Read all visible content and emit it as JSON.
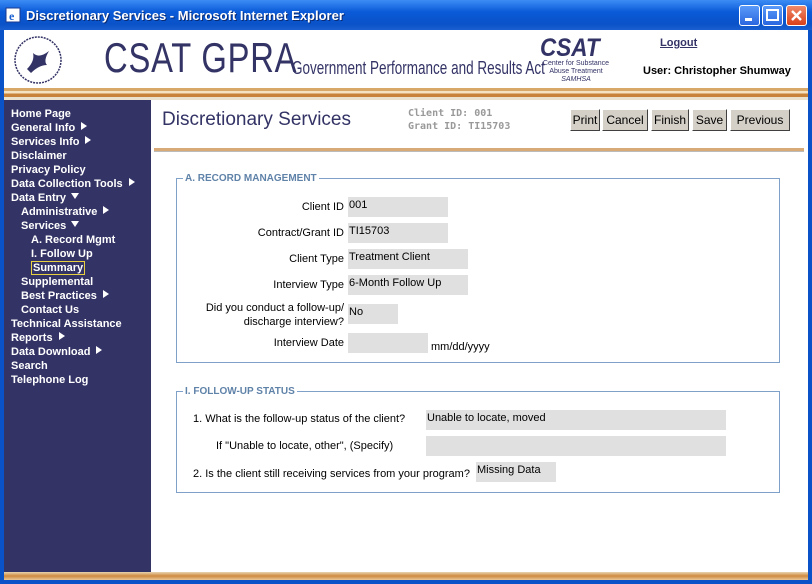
{
  "window": {
    "title": "Discretionary Services - Microsoft Internet Explorer"
  },
  "header": {
    "title": "CSAT GPRA",
    "subtitle": "Government Performance and Results Act",
    "logo": {
      "name": "CSAT",
      "lines": [
        "Center for Substance",
        "Abuse Treatment",
        "SAMHSA"
      ]
    },
    "logout": "Logout",
    "user": "User: Christopher Shumway"
  },
  "nav": {
    "items": [
      {
        "label": "Home Page"
      },
      {
        "label": "General Info",
        "submenu": "collapsed"
      },
      {
        "label": "Services Info",
        "submenu": "collapsed"
      },
      {
        "label": "Disclaimer"
      },
      {
        "label": "Privacy Policy"
      },
      {
        "label": "Data Collection Tools",
        "submenu": "collapsed"
      },
      {
        "label": "Data Entry",
        "children": [
          {
            "label": "Administrative",
            "submenu": "collapsed"
          },
          {
            "label": "Services",
            "children": [
              {
                "label": "A. Record Mgmt"
              },
              {
                "label": "I. Follow Up"
              },
              {
                "label": "Summary",
                "selected": true
              }
            ]
          },
          {
            "label": "Supplemental"
          },
          {
            "label": "Best Practices",
            "submenu": "collapsed"
          },
          {
            "label": "Contact Us"
          }
        ]
      },
      {
        "label": "Technical Assistance"
      },
      {
        "label": "Reports",
        "submenu": "collapsed"
      },
      {
        "label": "Data Download",
        "submenu": "collapsed"
      },
      {
        "label": "Search"
      },
      {
        "label": "Telephone Log"
      }
    ]
  },
  "page": {
    "title": "Discretionary Services",
    "client_id": "Client ID: 001",
    "grant_id": "Grant ID: TI15703",
    "buttons": [
      "Print",
      "Cancel",
      "Finish",
      "Save",
      "Previous"
    ]
  },
  "sections": [
    {
      "legend": "A. RECORD MANAGEMENT",
      "fields": [
        {
          "label": "Client ID",
          "value": "001"
        },
        {
          "label": "Contract/Grant ID",
          "value": "TI15703"
        },
        {
          "label": "Client Type",
          "value": "Treatment Client"
        },
        {
          "label": "Interview Type",
          "value": "6-Month Follow Up"
        },
        {
          "label": [
            "Did you conduct a follow-up/",
            "discharge interview?"
          ],
          "value": "No"
        },
        {
          "label": "Interview Date",
          "hint": "mm/dd/yyyy"
        }
      ]
    },
    {
      "legend": "I. FOLLOW-UP STATUS",
      "fields": [
        {
          "label": "1. What is the follow-up status of the client?",
          "value": "Unable to locate, moved"
        },
        {
          "label": "If \"Unable to locate, other\", (Specify)"
        },
        {
          "label": "2. Is the client still receiving services from your program?",
          "value": "Missing Data"
        }
      ]
    }
  ]
}
